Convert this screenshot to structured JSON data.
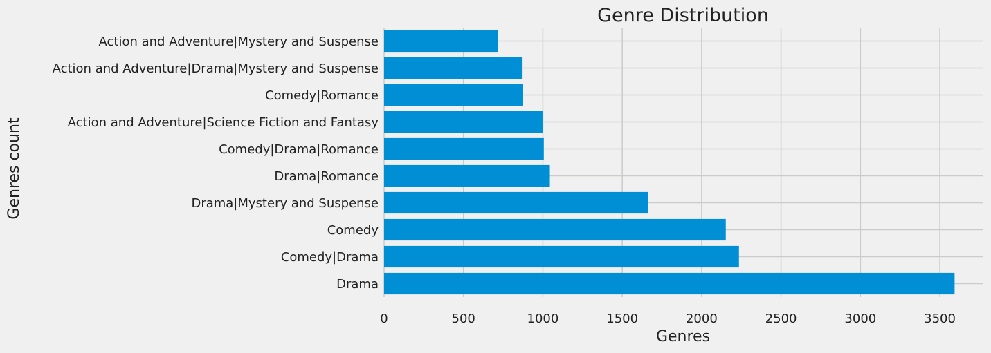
{
  "chart_data": {
    "type": "bar",
    "orientation": "horizontal",
    "title": "Genre Distribution",
    "xlabel": "Genres",
    "ylabel": "Genres count",
    "categories": [
      "Drama",
      "Comedy|Drama",
      "Comedy",
      "Drama|Mystery and Suspense",
      "Drama|Romance",
      "Comedy|Drama|Romance",
      "Action and Adventure|Science Fiction and Fantasy",
      "Comedy|Romance",
      "Action and Adventure|Drama|Mystery and Suspense",
      "Action and Adventure|Mystery and Suspense"
    ],
    "values": [
      3593,
      2235,
      2152,
      1664,
      1044,
      1006,
      998,
      876,
      872,
      716
    ],
    "xlim": [
      0,
      3770
    ],
    "xticks": [
      0,
      500,
      1000,
      1500,
      2000,
      2500,
      3000,
      3500
    ],
    "grid": true,
    "bar_color": "#008fd5",
    "background_color": "#f0f0f0",
    "grid_color": "#cbcbcb"
  }
}
